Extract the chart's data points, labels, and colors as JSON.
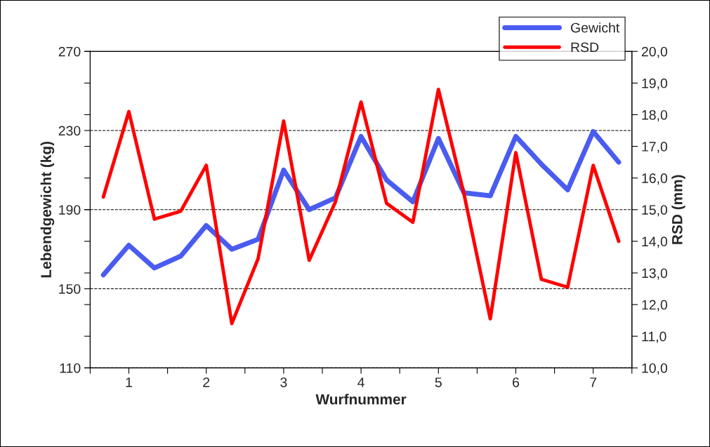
{
  "chart_data": {
    "type": "line",
    "xlabel": "Wurfnummer",
    "ylabel": "Lebendgewicht (kg)",
    "y2label": "RSD (mm)",
    "x": [
      0.67,
      1,
      1.33,
      1.67,
      2,
      2.33,
      2.67,
      3,
      3.33,
      3.67,
      4,
      4.33,
      4.67,
      5,
      5.33,
      5.67,
      6,
      6.33,
      6.67,
      7,
      7.33
    ],
    "xlim": [
      0.5,
      7.5
    ],
    "xticks": [
      {
        "value": 0.5,
        "label": null
      },
      1,
      {
        "value": 1.5,
        "label": null
      },
      2,
      {
        "value": 2.5,
        "label": null
      },
      3,
      {
        "value": 3.5,
        "label": null
      },
      4,
      {
        "value": 4.5,
        "label": null
      },
      5,
      {
        "value": 5.5,
        "label": null
      },
      6,
      {
        "value": 6.5,
        "label": null
      },
      7,
      {
        "value": 7.5,
        "label": null
      }
    ],
    "ylim": [
      110,
      270
    ],
    "yticks": [
      110,
      150,
      190,
      230,
      270
    ],
    "y2lim": [
      10,
      20
    ],
    "y2ticks": [
      {
        "value": 10,
        "label": "10,0"
      },
      {
        "value": 11,
        "label": "11,0"
      },
      {
        "value": 12,
        "label": "12,0"
      },
      {
        "value": 13,
        "label": "13,0"
      },
      {
        "value": 14,
        "label": "14,0"
      },
      {
        "value": 15,
        "label": "15,0"
      },
      {
        "value": 16,
        "label": "16,0"
      },
      {
        "value": 17,
        "label": "17,0"
      },
      {
        "value": 18,
        "label": "18,0"
      },
      {
        "value": 19,
        "label": "19,0"
      },
      {
        "value": 20,
        "label": "20,0"
      }
    ],
    "grid": "y",
    "legend": "top right",
    "marker": "none",
    "line_style": "solid",
    "series": [
      {
        "name": "Gewicht",
        "color": "#4a5cf0",
        "values": [
          157,
          172,
          160.5,
          166.5,
          182,
          170,
          175,
          210,
          190,
          196,
          227,
          205,
          194,
          226,
          198.5,
          197,
          227,
          213,
          200,
          229.5,
          214
        ]
      },
      {
        "name": "RSD",
        "color": "#ff0000",
        "axis": "y2",
        "values": [
          15.4,
          18.1,
          14.7,
          14.95,
          16.4,
          11.4,
          13.45,
          17.8,
          13.4,
          15.25,
          18.4,
          15.2,
          14.6,
          18.8,
          15.5,
          11.55,
          16.8,
          12.8,
          12.55,
          16.4,
          14.0
        ]
      }
    ]
  }
}
